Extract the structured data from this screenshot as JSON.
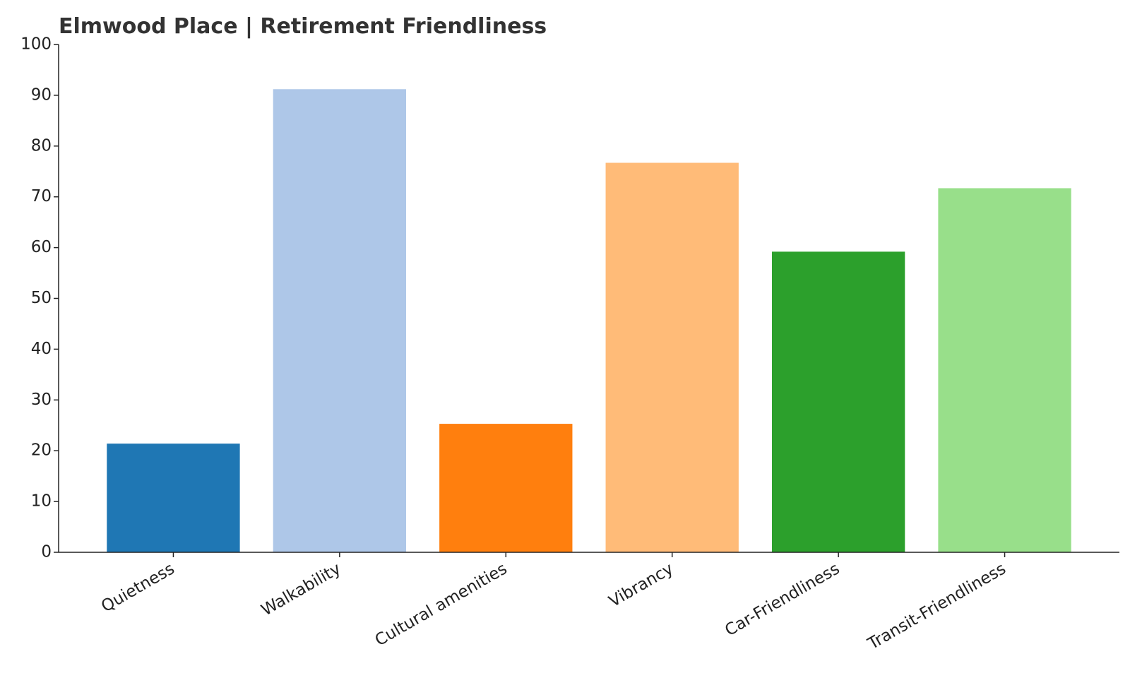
{
  "chart_data": {
    "type": "bar",
    "title": "Elmwood Place | Retirement Friendliness",
    "categories": [
      "Quietness",
      "Walkability",
      "Cultural amenities",
      "Vibrancy",
      "Car-Friendliness",
      "Transit-Friendliness"
    ],
    "values": [
      21.4,
      91.2,
      25.3,
      76.7,
      59.2,
      71.7
    ],
    "colors": [
      "#1f77b4",
      "#aec7e8",
      "#ff7f0e",
      "#ffbb78",
      "#2ca02c",
      "#98df8a"
    ],
    "ylim": [
      0,
      100
    ],
    "yticks": [
      0,
      10,
      20,
      30,
      40,
      50,
      60,
      70,
      80,
      90,
      100
    ],
    "grid": false
  }
}
